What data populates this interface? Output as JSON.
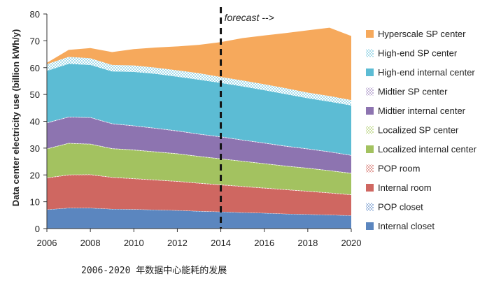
{
  "chart_data": {
    "type": "area",
    "stacked": true,
    "title": "",
    "xlabel": "",
    "ylabel": "Data center electricity use (billion kWh/y)",
    "x": [
      2006,
      2007,
      2008,
      2009,
      2010,
      2011,
      2012,
      2013,
      2014,
      2015,
      2016,
      2017,
      2018,
      2019,
      2020
    ],
    "xticks": [
      "2006",
      "2008",
      "2010",
      "2012",
      "2014",
      "2016",
      "2018",
      "2020"
    ],
    "yticks": [
      "0",
      "10",
      "20",
      "30",
      "40",
      "50",
      "60",
      "70",
      "80"
    ],
    "ylim": [
      0,
      80
    ],
    "xlim": [
      2006,
      2020
    ],
    "grid": false,
    "legend_position": "right",
    "annotation": {
      "text": "forecast -->",
      "x": 2014
    },
    "series": [
      {
        "name": "Internal closet",
        "color": "#5b86bf",
        "pattern": false,
        "values": [
          7.0,
          7.6,
          7.6,
          7.2,
          7.1,
          6.9,
          6.7,
          6.4,
          6.2,
          5.9,
          5.7,
          5.4,
          5.2,
          5.0,
          4.8
        ]
      },
      {
        "name": "POP closet",
        "color": "#9fb9dd",
        "pattern": true,
        "values": [
          0.1,
          0.1,
          0.1,
          0.1,
          0.1,
          0.1,
          0.1,
          0.1,
          0.1,
          0.1,
          0.1,
          0.1,
          0.1,
          0.1,
          0.1
        ]
      },
      {
        "name": "Internal room",
        "color": "#cf6761",
        "pattern": false,
        "values": [
          11.7,
          12.2,
          12.3,
          11.7,
          11.3,
          11.0,
          10.7,
          10.3,
          9.9,
          9.6,
          9.2,
          8.9,
          8.5,
          8.1,
          7.6
        ]
      },
      {
        "name": "POP  room",
        "color": "#e3a19c",
        "pattern": true,
        "values": [
          0.2,
          0.2,
          0.2,
          0.2,
          0.2,
          0.2,
          0.2,
          0.2,
          0.2,
          0.2,
          0.2,
          0.2,
          0.2,
          0.2,
          0.2
        ]
      },
      {
        "name": "Localized internal center",
        "color": "#a3c260",
        "pattern": false,
        "values": [
          10.6,
          11.6,
          11.2,
          10.5,
          10.5,
          10.3,
          10.1,
          9.8,
          9.5,
          9.2,
          8.9,
          8.6,
          8.4,
          8.1,
          7.8
        ]
      },
      {
        "name": "Localized SP center",
        "color": "#cde0a4",
        "pattern": true,
        "values": [
          0.2,
          0.2,
          0.2,
          0.2,
          0.2,
          0.2,
          0.2,
          0.2,
          0.2,
          0.2,
          0.2,
          0.2,
          0.2,
          0.2,
          0.2
        ]
      },
      {
        "name": "Midtier internal center",
        "color": "#8d74b0",
        "pattern": false,
        "values": [
          9.5,
          9.6,
          9.7,
          9.1,
          8.8,
          8.6,
          8.3,
          8.1,
          8.0,
          7.7,
          7.5,
          7.2,
          7.0,
          6.8,
          6.5
        ]
      },
      {
        "name": "Midtier SP center",
        "color": "#c4b5d8",
        "pattern": true,
        "values": [
          0.2,
          0.2,
          0.2,
          0.2,
          0.2,
          0.2,
          0.2,
          0.2,
          0.2,
          0.2,
          0.2,
          0.2,
          0.2,
          0.2,
          0.2
        ]
      },
      {
        "name": "High-end internal center",
        "color": "#5cbcd4",
        "pattern": false,
        "values": [
          19.3,
          19.7,
          19.5,
          19.4,
          20.0,
          20.2,
          20.1,
          20.2,
          20.0,
          19.9,
          19.6,
          19.3,
          18.8,
          18.6,
          18.5
        ]
      },
      {
        "name": "High-end SP center",
        "color": "#a9dcea",
        "pattern": true,
        "values": [
          2.5,
          2.6,
          2.5,
          2.4,
          2.4,
          2.3,
          2.4,
          2.4,
          2.2,
          2.2,
          2.2,
          2.2,
          2.1,
          2.1,
          2.0
        ]
      },
      {
        "name": "Hyperscale SP center",
        "color": "#f6a95c",
        "pattern": false,
        "values": [
          0.5,
          2.6,
          3.8,
          4.8,
          6.1,
          7.5,
          8.9,
          10.6,
          13.0,
          15.8,
          18.2,
          20.6,
          23.2,
          25.5,
          23.9
        ]
      }
    ]
  },
  "caption": "2006-2020 年数据中心能耗的发展"
}
